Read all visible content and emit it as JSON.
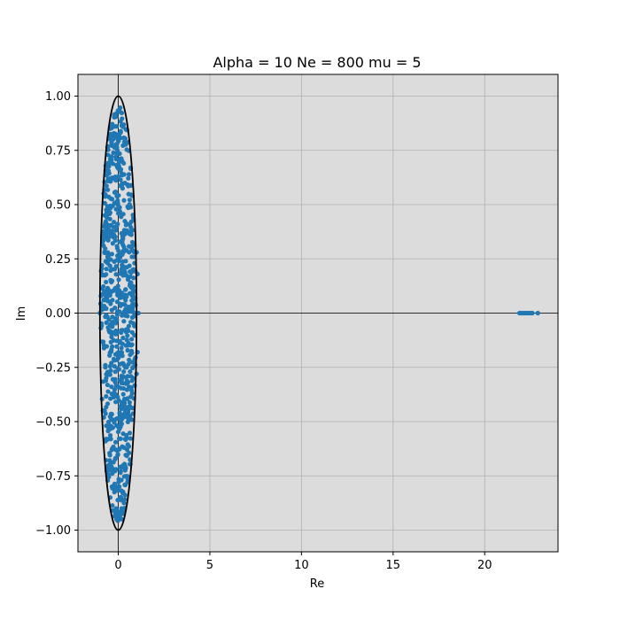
{
  "chart_data": {
    "type": "scatter",
    "title": "Alpha = 10 Ne = 800 mu = 5",
    "xlabel": "Re",
    "ylabel": "Im",
    "xlim": [
      -2.2,
      24.0
    ],
    "ylim": [
      -1.1,
      1.1
    ],
    "xticks": [
      0,
      5,
      10,
      15,
      20
    ],
    "yticks": [
      -1.0,
      -0.75,
      -0.5,
      -0.25,
      0.0,
      0.25,
      0.5,
      0.75,
      1.0
    ],
    "xtick_labels": [
      "0",
      "5",
      "10",
      "15",
      "20"
    ],
    "ytick_labels": [
      "−1.00",
      "−0.75",
      "−0.50",
      "−0.25",
      "0.00",
      "0.25",
      "0.50",
      "0.75",
      "1.00"
    ],
    "grid": true,
    "background_color": "#dcdcdc",
    "point_color": "#1f77b4",
    "ellipse": {
      "center": [
        0,
        0
      ],
      "semi_axis_re": 1.0,
      "semi_axis_im": 1.0,
      "color": "#000000"
    },
    "bulk": {
      "description_count": 800,
      "re_radius": 0.97,
      "im_radius": 0.97
    },
    "outliers": [
      [
        -1.0,
        0.0
      ],
      [
        1.1,
        0.0
      ],
      [
        1.0,
        0.28
      ],
      [
        1.0,
        -0.28
      ],
      [
        1.05,
        0.18
      ],
      [
        1.05,
        -0.18
      ],
      [
        0.05,
        0.93
      ],
      [
        0.05,
        -0.93
      ],
      [
        -0.2,
        0.86
      ],
      [
        0.3,
        -0.86
      ],
      [
        21.9,
        0.0
      ],
      [
        22.0,
        0.0
      ],
      [
        22.1,
        0.0
      ],
      [
        22.2,
        0.0
      ],
      [
        22.3,
        0.0
      ],
      [
        22.4,
        0.0
      ],
      [
        22.5,
        0.0
      ],
      [
        22.6,
        0.0
      ],
      [
        22.9,
        0.0
      ]
    ]
  }
}
